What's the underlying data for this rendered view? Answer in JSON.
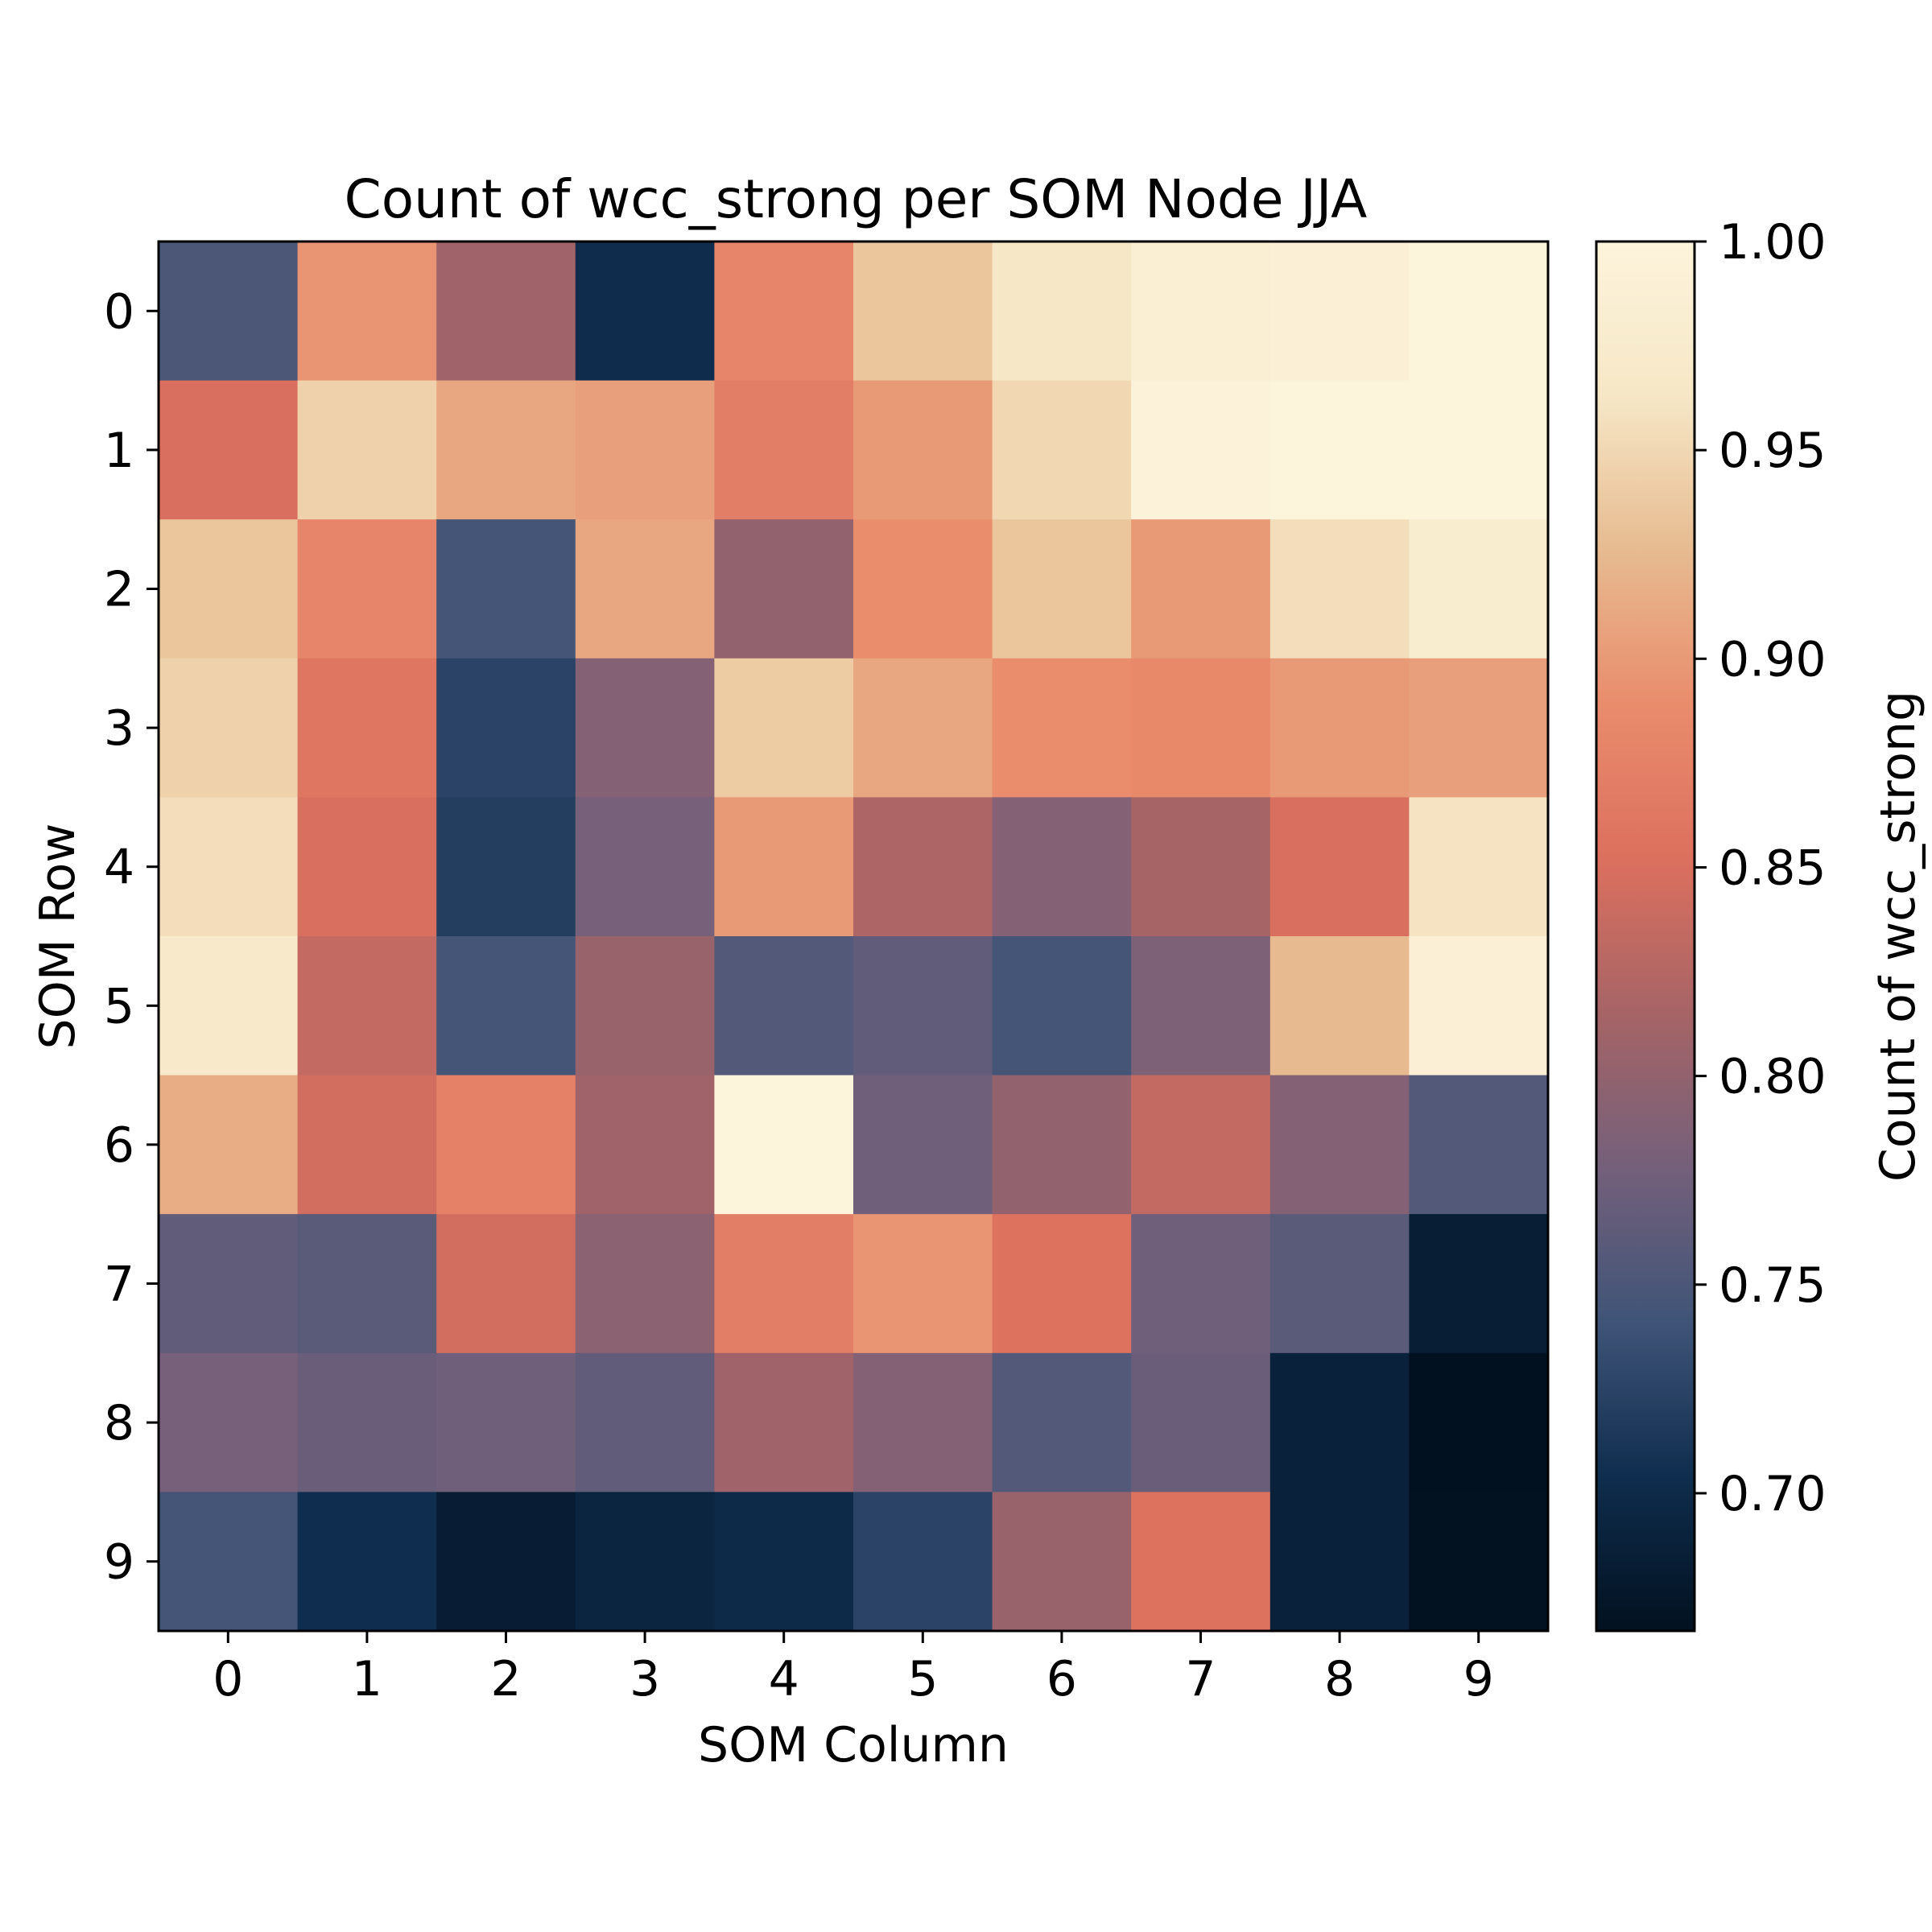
{
  "chart_data": {
    "type": "heatmap",
    "title": "Count of wcc_strong per SOM Node JJA",
    "xlabel": "SOM Column",
    "ylabel": "SOM Row",
    "colorbar_label": "Count of wcc_strong",
    "x_ticks": [
      "0",
      "1",
      "2",
      "3",
      "4",
      "5",
      "6",
      "7",
      "8",
      "9"
    ],
    "y_ticks": [
      "0",
      "1",
      "2",
      "3",
      "4",
      "5",
      "6",
      "7",
      "8",
      "9"
    ],
    "colorbar_ticks": [
      0.7,
      0.75,
      0.8,
      0.85,
      0.9,
      0.95,
      1.0
    ],
    "colorbar_tick_labels": [
      "0.70",
      "0.75",
      "0.80",
      "0.85",
      "0.90",
      "0.95",
      "1.00"
    ],
    "vmin": 0.667,
    "vmax": 1.0,
    "colormap": [
      "#02111f",
      "#0f2d4e",
      "#3f5478",
      "#74607a",
      "#a66466",
      "#dc705e",
      "#e98c6c",
      "#e7bb90",
      "#f6e7c6",
      "#fdf4dc"
    ],
    "values": [
      [
        0.75,
        0.895,
        0.81,
        0.703,
        0.88,
        0.935,
        0.965,
        0.985,
        0.99,
        1.0
      ],
      [
        0.85,
        0.945,
        0.91,
        0.905,
        0.87,
        0.9,
        0.95,
        0.995,
        1.0,
        1.0
      ],
      [
        0.935,
        0.88,
        0.745,
        0.91,
        0.8,
        0.89,
        0.935,
        0.9,
        0.955,
        0.98
      ],
      [
        0.945,
        0.86,
        0.725,
        0.79,
        0.94,
        0.91,
        0.89,
        0.885,
        0.9,
        0.905
      ],
      [
        0.955,
        0.85,
        0.72,
        0.78,
        0.9,
        0.82,
        0.79,
        0.815,
        0.85,
        0.96
      ],
      [
        0.97,
        0.835,
        0.745,
        0.805,
        0.755,
        0.765,
        0.745,
        0.785,
        0.925,
        0.99
      ],
      [
        0.915,
        0.845,
        0.875,
        0.81,
        1.0,
        0.775,
        0.8,
        0.835,
        0.79,
        0.755
      ],
      [
        0.765,
        0.76,
        0.845,
        0.795,
        0.87,
        0.895,
        0.855,
        0.775,
        0.76,
        0.684
      ],
      [
        0.78,
        0.77,
        0.775,
        0.765,
        0.81,
        0.79,
        0.755,
        0.77,
        0.688,
        0.667
      ],
      [
        0.745,
        0.704,
        0.683,
        0.692,
        0.7,
        0.725,
        0.805,
        0.855,
        0.688,
        0.668
      ]
    ]
  }
}
